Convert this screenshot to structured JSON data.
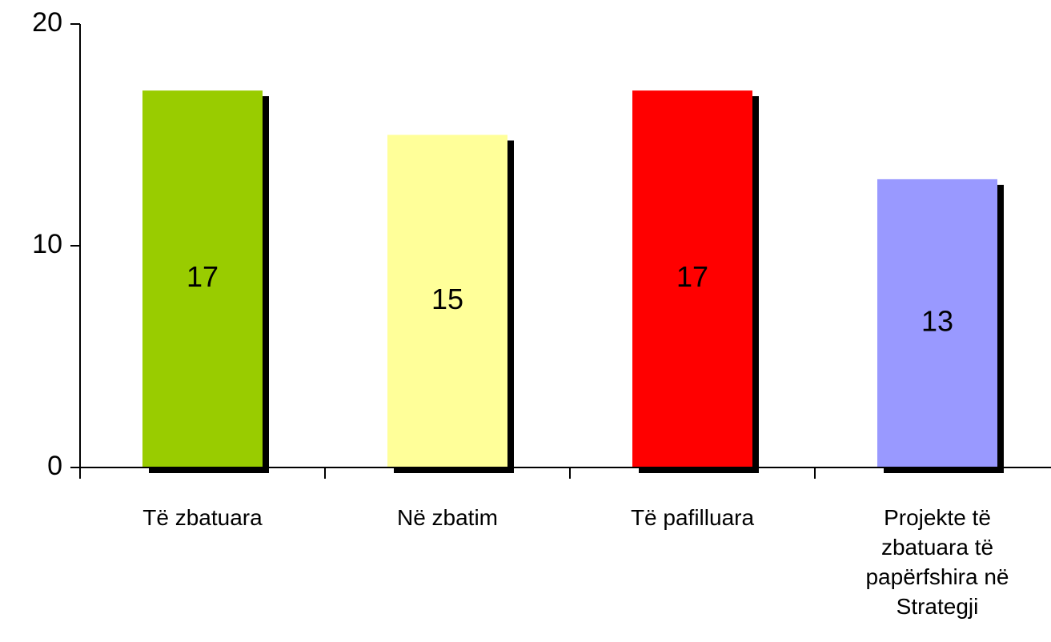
{
  "chart_data": {
    "type": "bar",
    "categories": [
      "Të zbatuara",
      "Në zbatim",
      "Të pafilluara",
      "Projekte të zbatuara të papërfshira në Strategji"
    ],
    "values": [
      17,
      15,
      17,
      13
    ],
    "colors": [
      "#99cc00",
      "#ffff99",
      "#ff0000",
      "#9999ff"
    ],
    "ylim": [
      0,
      20
    ],
    "yticks": [
      0,
      10,
      20
    ],
    "grid": false,
    "shadow": true
  }
}
